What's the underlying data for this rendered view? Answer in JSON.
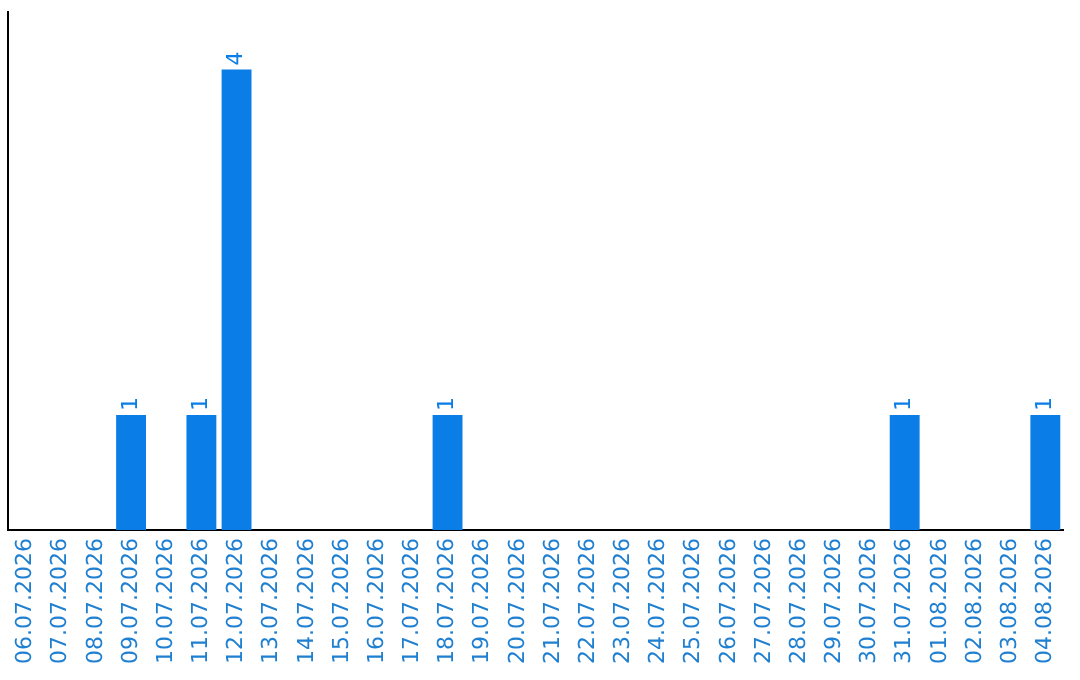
{
  "chart_data": {
    "type": "bar",
    "categories": [
      "06.07.2026",
      "07.07.2026",
      "08.07.2026",
      "09.07.2026",
      "10.07.2026",
      "11.07.2026",
      "12.07.2026",
      "13.07.2026",
      "14.07.2026",
      "15.07.2026",
      "16.07.2026",
      "17.07.2026",
      "18.07.2026",
      "19.07.2026",
      "20.07.2026",
      "21.07.2026",
      "22.07.2026",
      "23.07.2026",
      "24.07.2026",
      "25.07.2026",
      "26.07.2026",
      "27.07.2026",
      "28.07.2026",
      "29.07.2026",
      "30.07.2026",
      "31.07.2026",
      "01.08.2026",
      "02.08.2026",
      "03.08.2026",
      "04.08.2026"
    ],
    "values": [
      0,
      0,
      0,
      1,
      0,
      1,
      4,
      0,
      0,
      0,
      0,
      0,
      1,
      0,
      0,
      0,
      0,
      0,
      0,
      0,
      0,
      0,
      0,
      0,
      0,
      1,
      0,
      0,
      0,
      1
    ],
    "value_labels": [
      null,
      null,
      null,
      "1",
      null,
      "1",
      "4",
      null,
      null,
      null,
      null,
      null,
      "1",
      null,
      null,
      null,
      null,
      null,
      null,
      null,
      null,
      null,
      null,
      null,
      null,
      "1",
      null,
      null,
      null,
      "1"
    ],
    "color": "#0a7de6",
    "grid": false,
    "legend": false,
    "tick_labels": "x"
  }
}
